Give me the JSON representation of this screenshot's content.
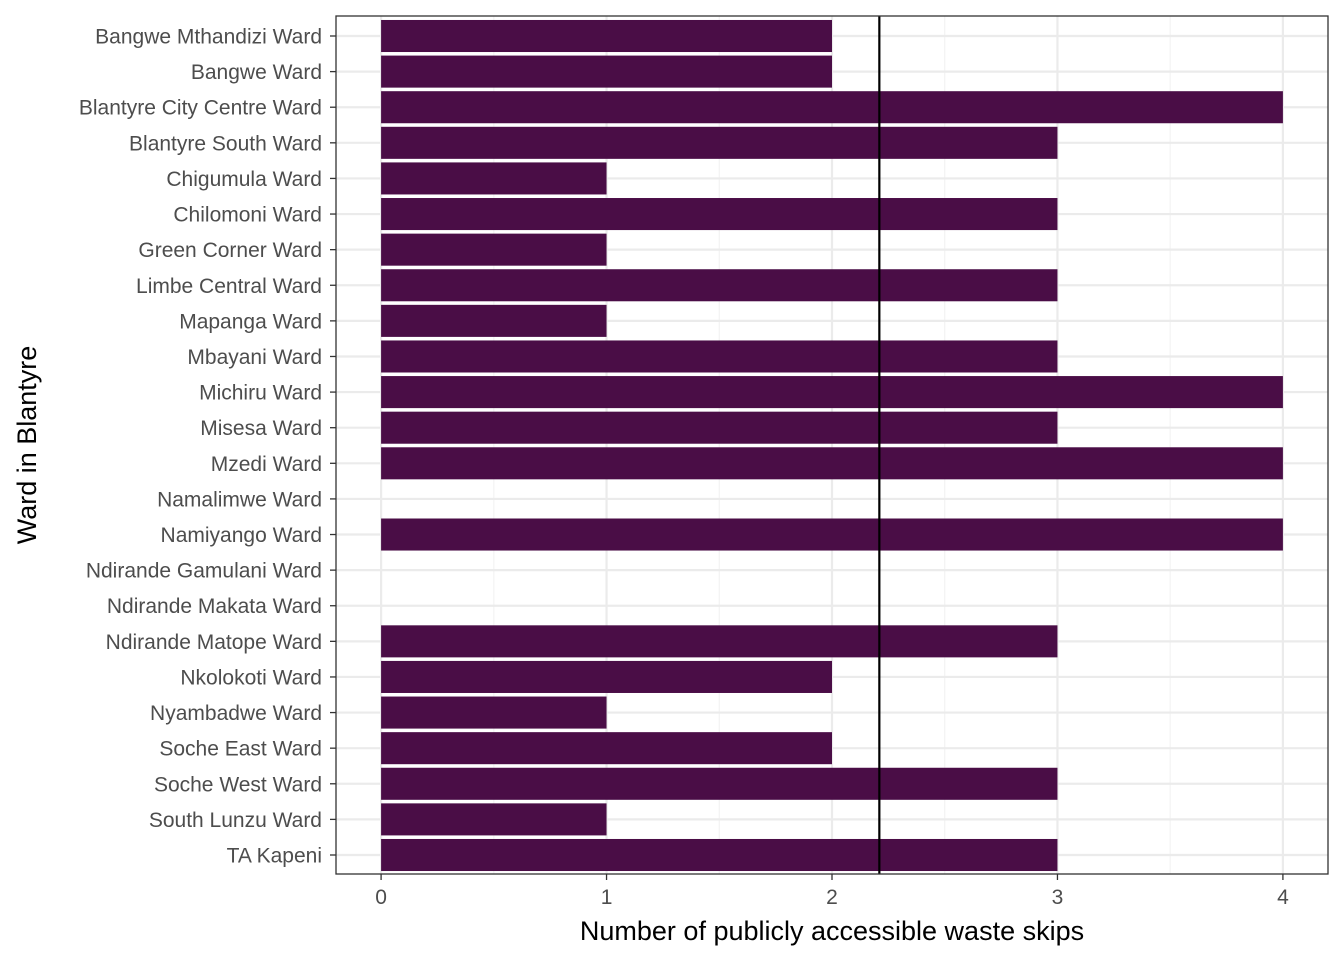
{
  "chart_data": {
    "type": "bar",
    "orientation": "horizontal",
    "xlabel": "Number of publicly accessible waste skips",
    "ylabel": "Ward in Blantyre",
    "xlim": [
      -0.2,
      4.2
    ],
    "xticks": [
      0,
      1,
      2,
      3,
      4
    ],
    "grid": true,
    "categories": [
      "Bangwe Mthandizi Ward",
      "Bangwe Ward",
      "Blantyre City Centre Ward",
      "Blantyre South Ward",
      "Chigumula Ward",
      "Chilomoni Ward",
      "Green Corner Ward",
      "Limbe Central Ward",
      "Mapanga Ward",
      "Mbayani Ward",
      "Michiru Ward",
      "Misesa Ward",
      "Mzedi Ward",
      "Namalimwe Ward",
      "Namiyango Ward",
      "Ndirande Gamulani Ward",
      "Ndirande Makata Ward",
      "Ndirande Matope Ward",
      "Nkolokoti Ward",
      "Nyambadwe Ward",
      "Soche East Ward",
      "Soche West Ward",
      "South Lunzu Ward",
      "TA Kapeni"
    ],
    "values": [
      2,
      2,
      4,
      3,
      1,
      3,
      1,
      3,
      1,
      3,
      4,
      3,
      4,
      0,
      4,
      0,
      0,
      3,
      2,
      1,
      2,
      3,
      1,
      3
    ],
    "reference_line": 2.21,
    "colors": {
      "bar": "#4a0d46",
      "reference_line": "#000000",
      "grid_major": "#ebebeb",
      "grid_minor": "#f3f3f3",
      "panel_border": "#333333"
    }
  }
}
